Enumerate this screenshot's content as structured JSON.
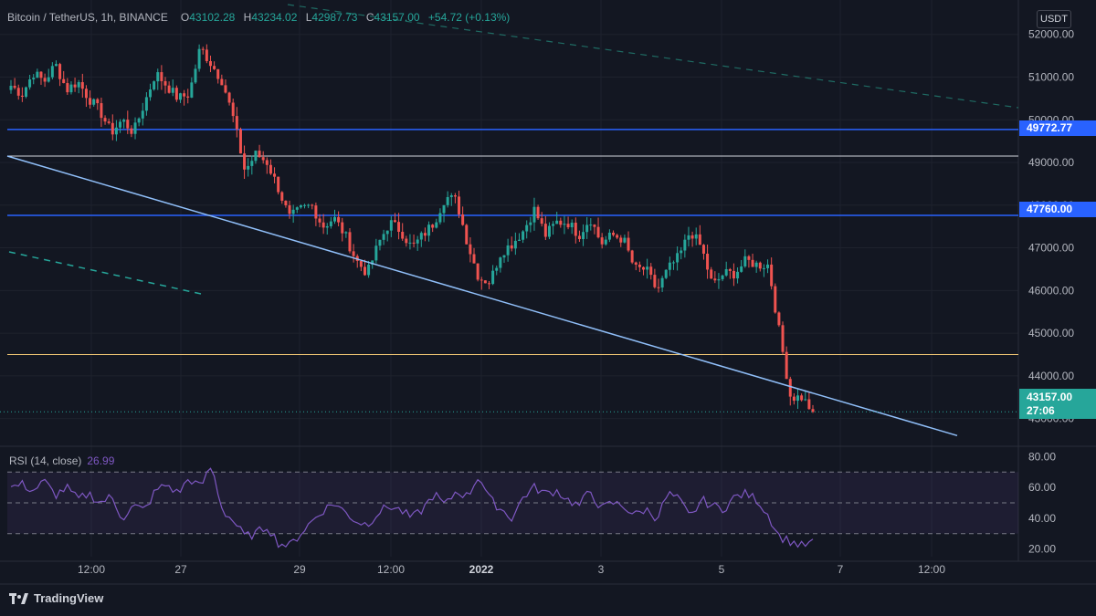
{
  "header": {
    "symbol": "Bitcoin / TetherUS, 1h, BINANCE",
    "o_label": "O",
    "o_value": "43102.28",
    "h_label": "H",
    "h_value": "43234.02",
    "l_label": "L",
    "l_value": "42987.73",
    "c_label": "C",
    "c_value": "43157.00",
    "change": "+54.72 (+0.13%)"
  },
  "currency": "USDT",
  "rsi": {
    "label": "RSI (14, close)",
    "value": "26.99"
  },
  "badges": {
    "level_high": "49772.77",
    "level_mid": "47760.00",
    "last_price": "43157.00",
    "countdown": "27:06"
  },
  "colors": {
    "background": "#131722",
    "up": "#26a69a",
    "down": "#ef5350",
    "level_lines": "#2962ff",
    "trendline": "#90bff9",
    "rsi_line": "#7e57c2",
    "support": "#f0c674"
  },
  "logo_text": "TradingView",
  "chart_data": {
    "type": "candlestick",
    "price_axis": {
      "ticks": [
        "52000.00",
        "51000.00",
        "50000.00",
        "49000.00",
        "48000.00",
        "47000.00",
        "46000.00",
        "45000.00",
        "44000.00",
        "43000.00"
      ],
      "ylim": [
        42500,
        52700
      ]
    },
    "time_axis": {
      "ticks": [
        "12:00",
        "27",
        "29",
        "12:00",
        "2022",
        "3",
        "5",
        "7",
        "12:00"
      ]
    },
    "rsi_axis": {
      "ticks": [
        "80.00",
        "60.00",
        "40.00",
        "20.00"
      ],
      "ylim": [
        15,
        85
      ],
      "bands": [
        30,
        50,
        70
      ]
    },
    "horizontal_levels": [
      49772.77,
      49150,
      47760,
      44500
    ],
    "trendline": {
      "from_price": 49150,
      "to_price": 42600
    },
    "close_path": [
      [
        50800,
        50600,
        51100,
        50900,
        51300,
        50700,
        50900,
        50500,
        50200,
        49700
      ],
      [
        50000,
        49700,
        50400,
        51100,
        50800,
        50500,
        50600,
        51700,
        51300,
        50900
      ],
      [
        50000,
        48800,
        49200,
        49000,
        48400,
        47700,
        47900,
        48000,
        47500,
        47700
      ],
      [
        47300,
        46700,
        46400,
        47100,
        47600,
        47400,
        47000,
        47300,
        47600,
        48200
      ],
      [
        48100,
        47100,
        46300,
        46200,
        46900,
        47100,
        47400,
        47900,
        47300,
        47600
      ],
      [
        47600,
        47300,
        47700,
        47100,
        47300,
        47200,
        46500,
        46500,
        46000,
        46500
      ],
      [
        46800,
        47400,
        47000,
        46100,
        46400,
        46400,
        46700,
        46600,
        46600,
        45000
      ],
      [
        43500,
        43500,
        43157
      ]
    ],
    "rsi_path": [
      [
        60,
        62,
        58,
        64,
        55,
        60,
        52,
        56,
        50,
        54
      ],
      [
        40,
        48,
        45,
        58,
        62,
        56,
        66,
        60,
        74,
        45
      ],
      [
        38,
        28,
        30,
        35,
        24,
        22,
        30,
        38,
        45,
        50
      ],
      [
        44,
        38,
        36,
        44,
        48,
        45,
        40,
        46,
        56,
        48
      ],
      [
        58,
        54,
        68,
        52,
        46,
        40,
        54,
        60,
        56,
        58
      ],
      [
        52,
        48,
        58,
        46,
        50,
        48,
        42,
        46,
        40,
        56
      ],
      [
        52,
        40,
        52,
        48,
        46,
        54,
        56,
        52,
        42,
        28
      ],
      [
        25,
        22,
        24
      ]
    ]
  }
}
